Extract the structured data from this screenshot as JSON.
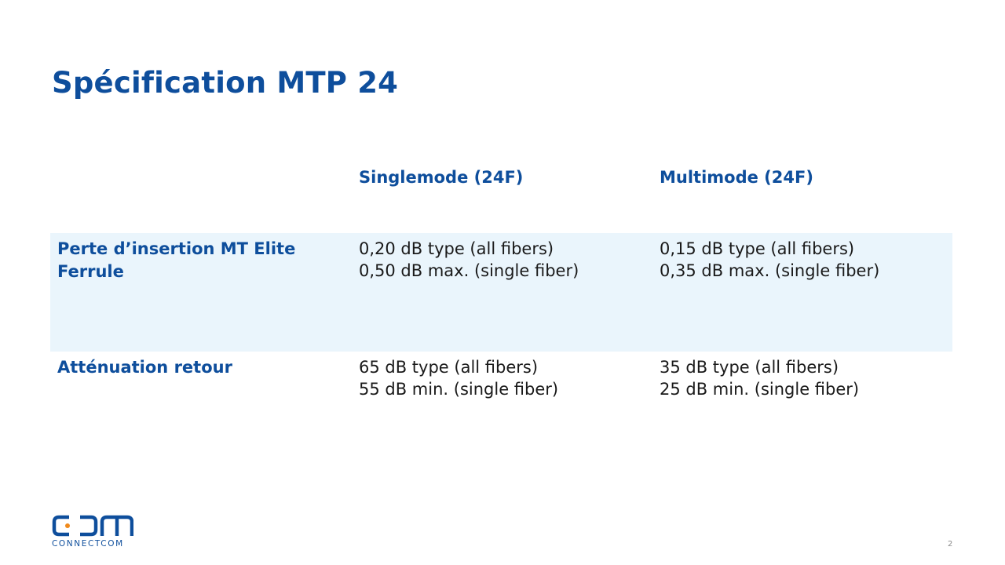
{
  "slide": {
    "title": "Spécification MTP 24",
    "page_number": "2"
  },
  "table": {
    "columns": [
      "Singlemode (24F)",
      "Multimode (24F)"
    ],
    "rows": [
      {
        "label": "Perte d’insertion MT Elite Ferrule",
        "singlemode": [
          "0,20 dB type (all fibers)",
          "0,50 dB max. (single fiber)"
        ],
        "multimode": [
          "0,15 dB type (all fibers)",
          "0,35 dB max. (single fiber)"
        ]
      },
      {
        "label": "Atténuation retour",
        "singlemode": [
          "65 dB type (all fibers)",
          "55 dB min. (single fiber)"
        ],
        "multimode": [
          "35 dB type (all fibers)",
          "25 dB min. (single fiber)"
        ]
      }
    ]
  },
  "logo": {
    "mark_letters": "CDM",
    "wordmark": "CONNECTCOM"
  },
  "colors": {
    "brand_blue": "#0e4e9c",
    "accent_orange": "#f08a1c",
    "row_highlight": "#eaf5fc"
  }
}
